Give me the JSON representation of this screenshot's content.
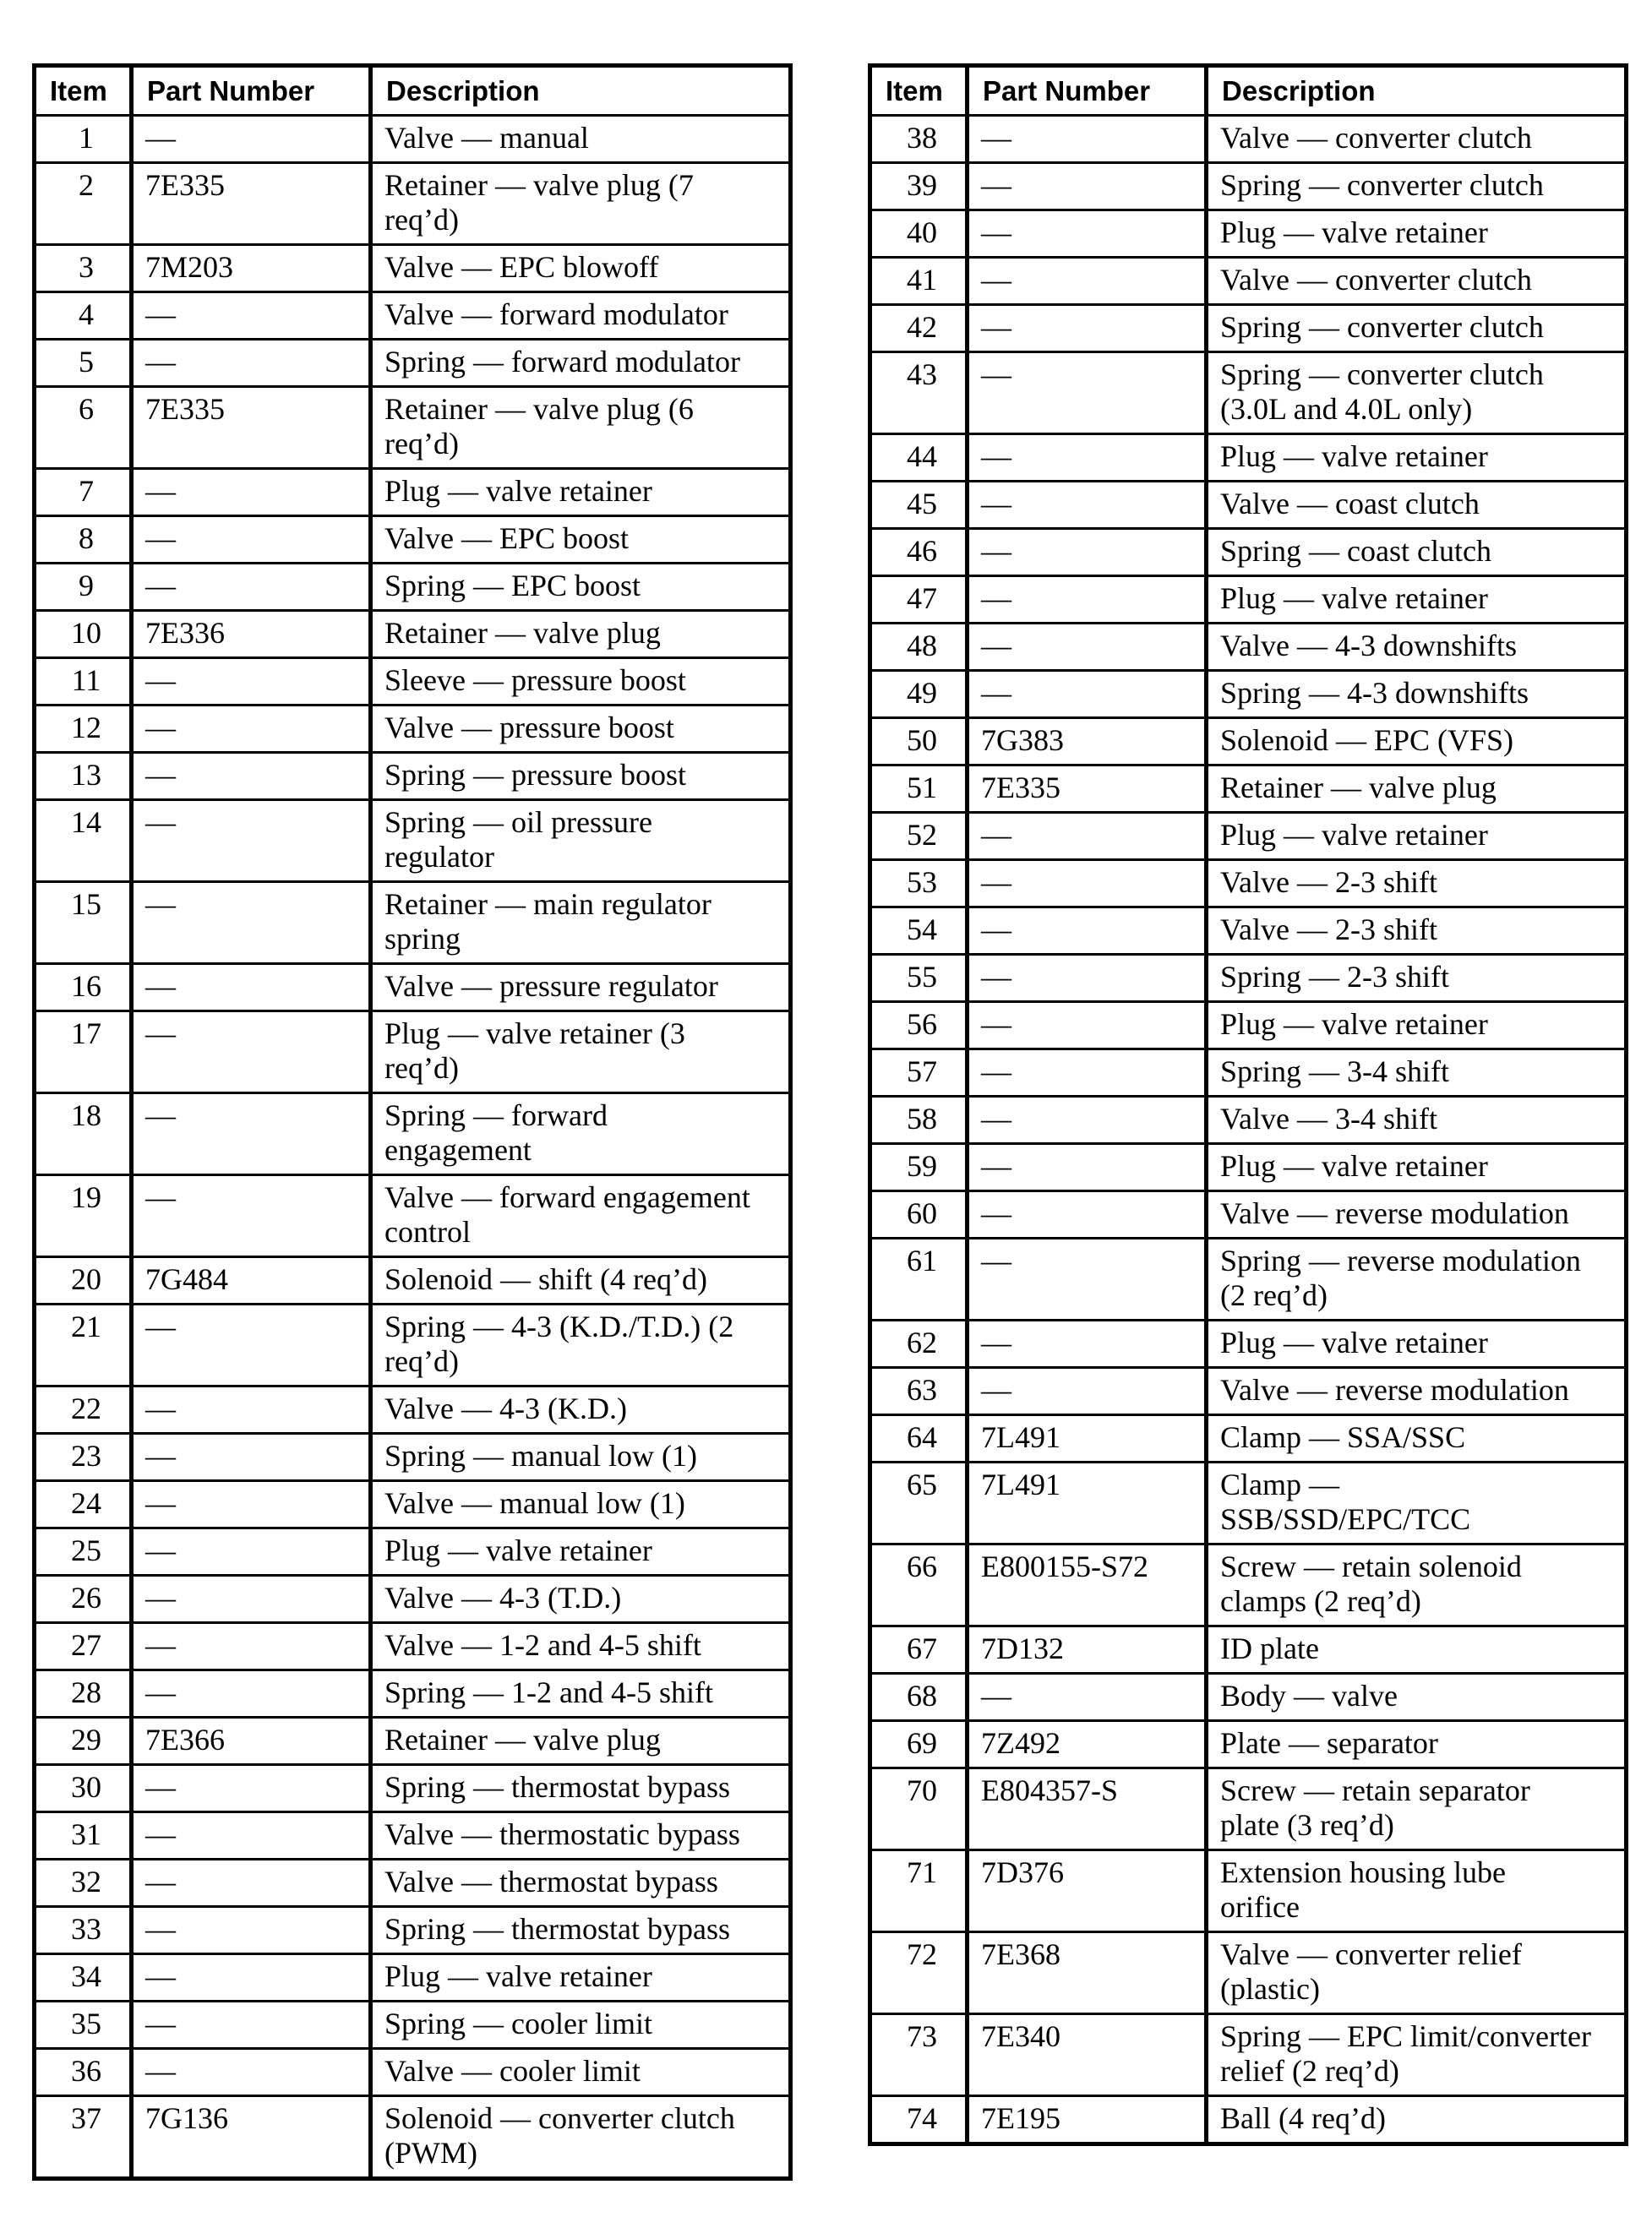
{
  "colors": {
    "background": "#ffffff",
    "text": "#000000",
    "border": "#000000"
  },
  "tables": [
    {
      "id": "left",
      "headers": {
        "item": "Item",
        "part_number": "Part Number",
        "description": "Description"
      },
      "rows": [
        {
          "item": "1",
          "part_number": "—",
          "description": "Valve — manual"
        },
        {
          "item": "2",
          "part_number": "7E335",
          "description": "Retainer — valve plug (7\nreq’d)"
        },
        {
          "item": "3",
          "part_number": "7M203",
          "description": "Valve — EPC blowoff"
        },
        {
          "item": "4",
          "part_number": "—",
          "description": "Valve — forward modulator"
        },
        {
          "item": "5",
          "part_number": "—",
          "description": "Spring — forward modulator"
        },
        {
          "item": "6",
          "part_number": "7E335",
          "description": "Retainer — valve plug (6\nreq’d)"
        },
        {
          "item": "7",
          "part_number": "—",
          "description": "Plug — valve retainer"
        },
        {
          "item": "8",
          "part_number": "—",
          "description": "Valve — EPC boost"
        },
        {
          "item": "9",
          "part_number": "—",
          "description": "Spring — EPC boost"
        },
        {
          "item": "10",
          "part_number": "7E336",
          "description": "Retainer — valve plug"
        },
        {
          "item": "11",
          "part_number": "—",
          "description": "Sleeve — pressure boost"
        },
        {
          "item": "12",
          "part_number": "—",
          "description": "Valve — pressure boost"
        },
        {
          "item": "13",
          "part_number": "—",
          "description": "Spring — pressure boost"
        },
        {
          "item": "14",
          "part_number": "—",
          "description": "Spring — oil pressure\nregulator"
        },
        {
          "item": "15",
          "part_number": "—",
          "description": "Retainer — main regulator\nspring"
        },
        {
          "item": "16",
          "part_number": "—",
          "description": "Valve — pressure regulator"
        },
        {
          "item": "17",
          "part_number": "—",
          "description": "Plug — valve retainer (3\nreq’d)"
        },
        {
          "item": "18",
          "part_number": "—",
          "description": "Spring — forward\nengagement"
        },
        {
          "item": "19",
          "part_number": "—",
          "description": "Valve — forward engagement\ncontrol"
        },
        {
          "item": "20",
          "part_number": "7G484",
          "description": "Solenoid — shift (4 req’d)"
        },
        {
          "item": "21",
          "part_number": "—",
          "description": "Spring — 4-3 (K.D./T.D.) (2\nreq’d)"
        },
        {
          "item": "22",
          "part_number": "—",
          "description": "Valve — 4-3 (K.D.)"
        },
        {
          "item": "23",
          "part_number": "—",
          "description": "Spring — manual low (1)"
        },
        {
          "item": "24",
          "part_number": "—",
          "description": "Valve — manual low (1)"
        },
        {
          "item": "25",
          "part_number": "—",
          "description": "Plug — valve retainer"
        },
        {
          "item": "26",
          "part_number": "—",
          "description": "Valve — 4-3 (T.D.)"
        },
        {
          "item": "27",
          "part_number": "—",
          "description": "Valve — 1-2 and 4-5 shift"
        },
        {
          "item": "28",
          "part_number": "—",
          "description": "Spring — 1-2 and 4-5 shift"
        },
        {
          "item": "29",
          "part_number": "7E366",
          "description": "Retainer — valve plug"
        },
        {
          "item": "30",
          "part_number": "—",
          "description": "Spring — thermostat bypass"
        },
        {
          "item": "31",
          "part_number": "—",
          "description": "Valve — thermostatic bypass"
        },
        {
          "item": "32",
          "part_number": "—",
          "description": "Valve — thermostat bypass"
        },
        {
          "item": "33",
          "part_number": "—",
          "description": "Spring — thermostat bypass"
        },
        {
          "item": "34",
          "part_number": "—",
          "description": "Plug — valve retainer"
        },
        {
          "item": "35",
          "part_number": "—",
          "description": "Spring — cooler limit"
        },
        {
          "item": "36",
          "part_number": "—",
          "description": "Valve — cooler limit"
        },
        {
          "item": "37",
          "part_number": "7G136",
          "description": "Solenoid — converter clutch\n(PWM)"
        }
      ]
    },
    {
      "id": "right",
      "headers": {
        "item": "Item",
        "part_number": "Part Number",
        "description": "Description"
      },
      "rows": [
        {
          "item": "38",
          "part_number": "—",
          "description": "Valve — converter clutch"
        },
        {
          "item": "39",
          "part_number": "—",
          "description": "Spring — converter clutch"
        },
        {
          "item": "40",
          "part_number": "—",
          "description": "Plug — valve retainer"
        },
        {
          "item": "41",
          "part_number": "—",
          "description": "Valve — converter clutch"
        },
        {
          "item": "42",
          "part_number": "—",
          "description": "Spring — converter clutch"
        },
        {
          "item": "43",
          "part_number": "—",
          "description": "Spring — converter clutch\n(3.0L and 4.0L only)"
        },
        {
          "item": "44",
          "part_number": "—",
          "description": "Plug — valve retainer"
        },
        {
          "item": "45",
          "part_number": "—",
          "description": "Valve — coast clutch"
        },
        {
          "item": "46",
          "part_number": "—",
          "description": "Spring — coast clutch"
        },
        {
          "item": "47",
          "part_number": "—",
          "description": "Plug — valve retainer"
        },
        {
          "item": "48",
          "part_number": "—",
          "description": "Valve — 4-3 downshifts"
        },
        {
          "item": "49",
          "part_number": "—",
          "description": "Spring — 4-3 downshifts"
        },
        {
          "item": "50",
          "part_number": "7G383",
          "description": "Solenoid — EPC (VFS)"
        },
        {
          "item": "51",
          "part_number": "7E335",
          "description": "Retainer — valve plug"
        },
        {
          "item": "52",
          "part_number": "—",
          "description": "Plug — valve retainer"
        },
        {
          "item": "53",
          "part_number": "—",
          "description": "Valve — 2-3 shift"
        },
        {
          "item": "54",
          "part_number": "—",
          "description": "Valve — 2-3 shift"
        },
        {
          "item": "55",
          "part_number": "—",
          "description": "Spring — 2-3 shift"
        },
        {
          "item": "56",
          "part_number": "—",
          "description": "Plug — valve retainer"
        },
        {
          "item": "57",
          "part_number": "—",
          "description": "Spring — 3-4 shift"
        },
        {
          "item": "58",
          "part_number": "—",
          "description": "Valve — 3-4 shift"
        },
        {
          "item": "59",
          "part_number": "—",
          "description": "Plug — valve retainer"
        },
        {
          "item": "60",
          "part_number": "—",
          "description": "Valve — reverse modulation"
        },
        {
          "item": "61",
          "part_number": "—",
          "description": "Spring — reverse modulation\n(2 req’d)"
        },
        {
          "item": "62",
          "part_number": "—",
          "description": "Plug — valve retainer"
        },
        {
          "item": "63",
          "part_number": "—",
          "description": "Valve — reverse modulation"
        },
        {
          "item": "64",
          "part_number": "7L491",
          "description": "Clamp — SSA/SSC"
        },
        {
          "item": "65",
          "part_number": "7L491",
          "description": "Clamp —\nSSB/SSD/EPC/TCC"
        },
        {
          "item": "66",
          "part_number": "E800155-S72",
          "description": "Screw — retain solenoid\nclamps (2 req’d)"
        },
        {
          "item": "67",
          "part_number": "7D132",
          "description": "ID plate"
        },
        {
          "item": "68",
          "part_number": "—",
          "description": "Body — valve"
        },
        {
          "item": "69",
          "part_number": "7Z492",
          "description": "Plate — separator"
        },
        {
          "item": "70",
          "part_number": "E804357-S",
          "description": "Screw — retain separator\nplate (3 req’d)"
        },
        {
          "item": "71",
          "part_number": "7D376",
          "description": "Extension housing lube\norifice"
        },
        {
          "item": "72",
          "part_number": "7E368",
          "description": "Valve — converter relief\n(plastic)"
        },
        {
          "item": "73",
          "part_number": "7E340",
          "description": "Spring — EPC limit/converter\nrelief (2 req’d)"
        },
        {
          "item": "74",
          "part_number": "7E195",
          "description": "Ball (4 req’d)"
        }
      ]
    }
  ]
}
